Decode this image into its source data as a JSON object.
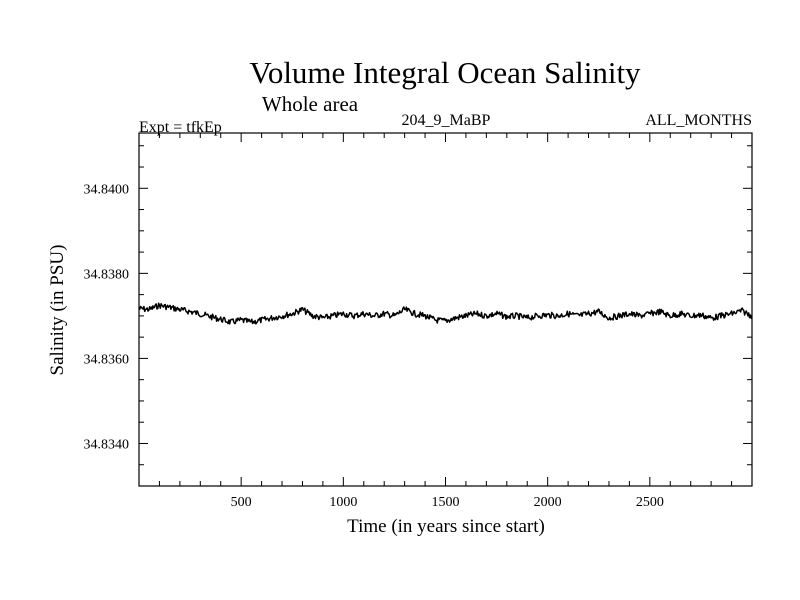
{
  "chart_data": {
    "type": "line",
    "title": "Volume Integral Ocean Salinity",
    "subtitle": "Whole area",
    "experiment": "Expt = tfkEp",
    "run_label": "204_9_MaBP",
    "months_label": "ALL_MONTHS",
    "xlabel": "Time (in years since start)",
    "ylabel": "Salinity (in PSU)",
    "xlim": [
      0,
      3000
    ],
    "ylim": [
      34.833,
      34.8413
    ],
    "xticks": [
      500,
      1000,
      1500,
      2000,
      2500
    ],
    "xtick_labels": [
      "500",
      "1000",
      "1500",
      "2000",
      "2500"
    ],
    "yticks": [
      34.834,
      34.836,
      34.838,
      34.84
    ],
    "ytick_labels": [
      "34.8340",
      "34.8360",
      "34.8380",
      "34.8400"
    ],
    "grid": false,
    "colors": {
      "line": "#000000",
      "axes": "#000000",
      "background": "#ffffff"
    },
    "series": [
      {
        "x": [
          0,
          50,
          100,
          150,
          200,
          250,
          300,
          350,
          400,
          450,
          500,
          550,
          600,
          650,
          700,
          750,
          800,
          850,
          900,
          950,
          1000,
          1050,
          1100,
          1150,
          1200,
          1250,
          1300,
          1350,
          1400,
          1450,
          1500,
          1550,
          1600,
          1650,
          1700,
          1750,
          1800,
          1850,
          1900,
          1950,
          2000,
          2050,
          2100,
          2150,
          2200,
          2250,
          2300,
          2350,
          2400,
          2450,
          2500,
          2550,
          2600,
          2650,
          2700,
          2750,
          2800,
          2850,
          2900,
          2950,
          3000
        ],
        "values": [
          34.83717,
          34.83715,
          34.83725,
          34.8372,
          34.83715,
          34.8371,
          34.83705,
          34.83698,
          34.83692,
          34.83685,
          34.8369,
          34.83685,
          34.8369,
          34.83695,
          34.837,
          34.83705,
          34.83715,
          34.837,
          34.83695,
          34.837,
          34.83705,
          34.837,
          34.83705,
          34.837,
          34.83705,
          34.837,
          34.83715,
          34.83705,
          34.837,
          34.8369,
          34.83688,
          34.83695,
          34.837,
          34.83705,
          34.837,
          34.83705,
          34.83698,
          34.837,
          34.83695,
          34.837,
          34.83702,
          34.837,
          34.83705,
          34.837,
          34.83705,
          34.8371,
          34.83695,
          34.837,
          34.83705,
          34.837,
          34.83705,
          34.8371,
          34.837,
          34.83705,
          34.837,
          34.83702,
          34.83695,
          34.837,
          34.83705,
          34.83712,
          34.837
        ]
      }
    ]
  }
}
